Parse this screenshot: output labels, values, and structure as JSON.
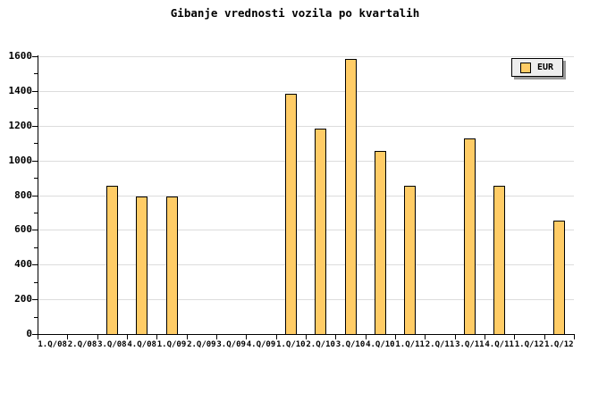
{
  "window": {
    "background": "#FFFFFF"
  },
  "chart_data": {
    "type": "bar",
    "title": "Gibanje vrednosti vozila po kvartalih",
    "categories": [
      "1.Q/08",
      "2.Q/08",
      "3.Q/08",
      "4.Q/08",
      "1.Q/09",
      "2.Q/09",
      "3.Q/09",
      "4.Q/09",
      "1.Q/10",
      "2.Q/10",
      "3.Q/10",
      "4.Q/10",
      "1.Q/11",
      "2.Q/11",
      "3.Q/11",
      "4.Q/11",
      "1.Q/12",
      "1.Q/12"
    ],
    "series": [
      {
        "name": "EUR",
        "values": [
          null,
          null,
          855,
          790,
          790,
          null,
          null,
          null,
          1385,
          1185,
          1585,
          1055,
          855,
          null,
          1125,
          855,
          null,
          655
        ]
      }
    ],
    "xlabel": "",
    "ylabel": "",
    "ylim": [
      0,
      1600
    ],
    "ytick_step": 200,
    "ytick_minor_step": 100,
    "ytick_labels": [
      "0",
      "200",
      "400",
      "600",
      "800",
      "1000",
      "1200",
      "1400",
      "1600"
    ],
    "grid": "horizontal",
    "legend": {
      "position": "top-right",
      "entries": [
        "EUR"
      ]
    },
    "colors": {
      "bar_fill": "#FFCC66",
      "bar_border": "#000000",
      "grid": "#DCDCDC",
      "axis": "#000000",
      "text": "#000000",
      "legend_bg": "#EEEEEE",
      "legend_border": "#000000",
      "legend_shadow": "#999999",
      "background": "#FFFFFF"
    }
  }
}
